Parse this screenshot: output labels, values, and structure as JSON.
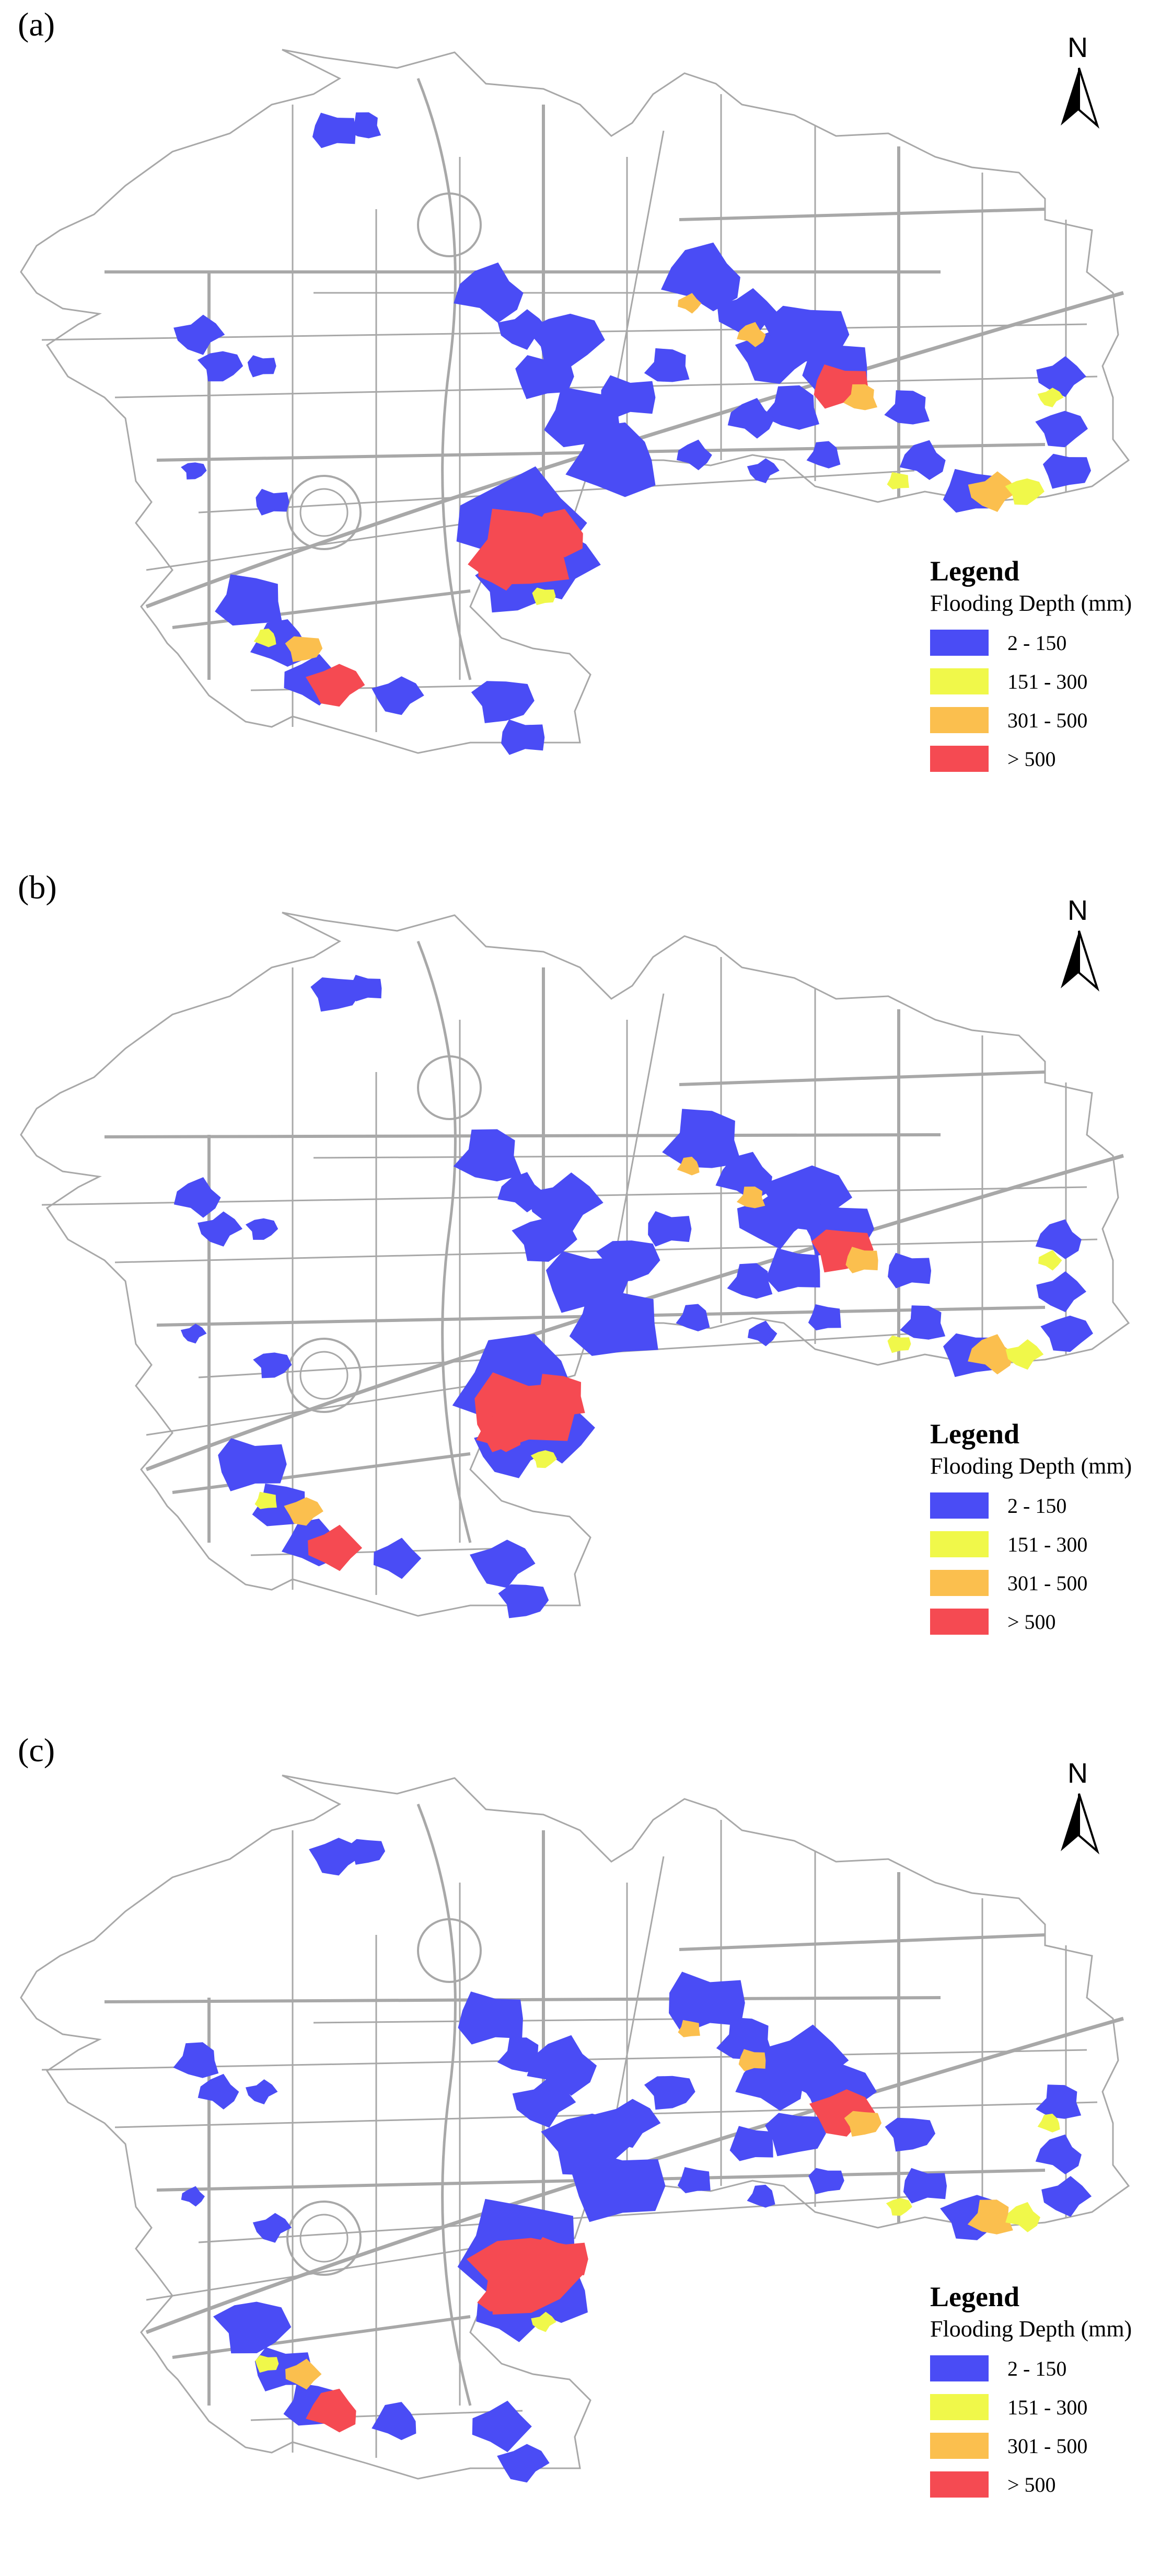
{
  "panels": [
    {
      "label": "(a)"
    },
    {
      "label": "(b)"
    },
    {
      "label": "(c)"
    }
  ],
  "north_arrow": {
    "letter": "N",
    "icon": "north-arrow-icon"
  },
  "legend": {
    "title": "Legend",
    "subtitle": "Flooding Depth (mm)",
    "classes": [
      {
        "label": "2 - 150",
        "color": "#4a4cf5"
      },
      {
        "label": "151 - 300",
        "color": "#f0f84a"
      },
      {
        "label": "301 - 500",
        "color": "#fbbf4e"
      },
      {
        "label": "> 500",
        "color": "#f54a52"
      }
    ]
  },
  "map_colors": {
    "road": "#a8a8a8",
    "background": "#ffffff"
  }
}
